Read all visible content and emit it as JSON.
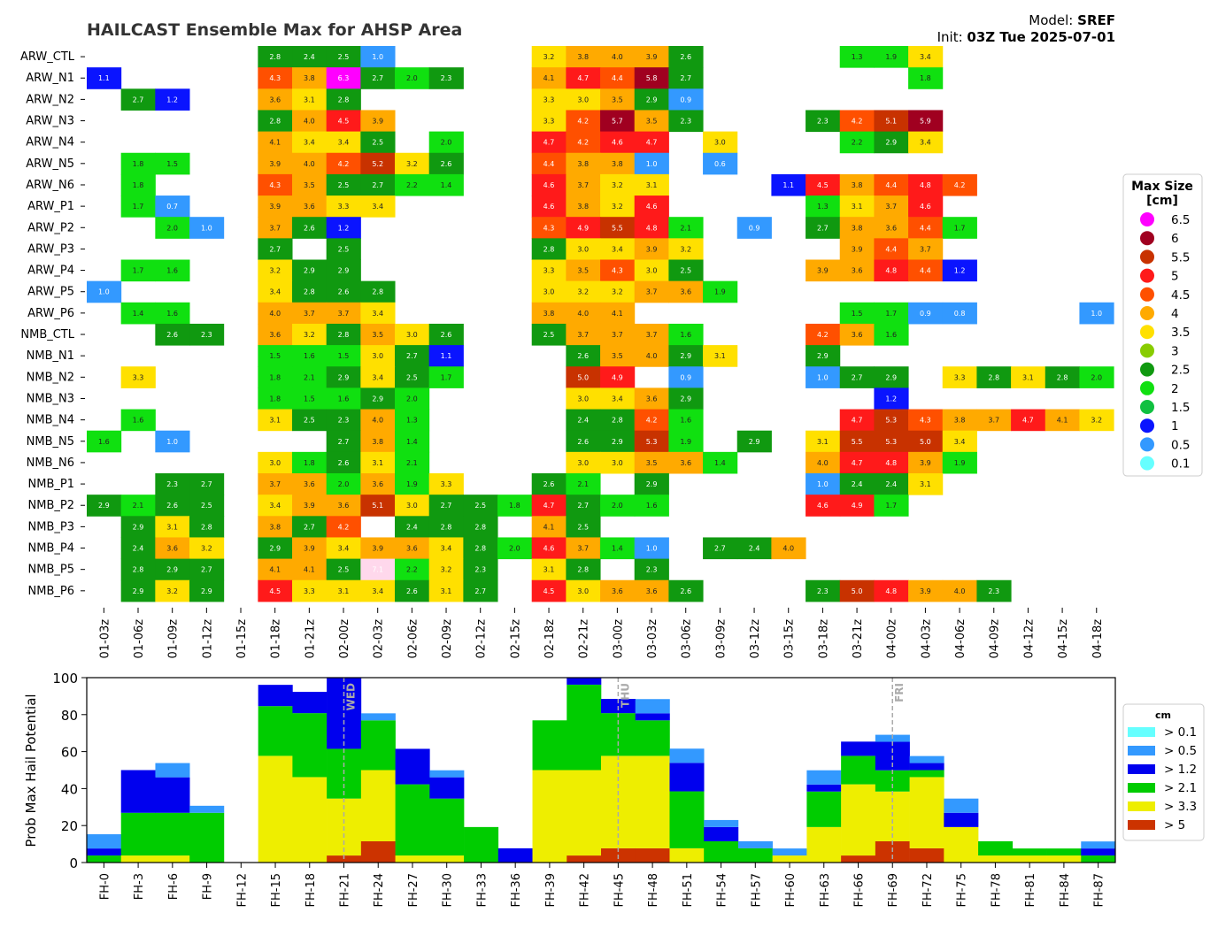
{
  "header": {
    "title": "HAILCAST Ensemble Max for AHSP Area",
    "model_label": "Model:",
    "model_value": "SREF",
    "init_label": "Init:",
    "init_value": "03Z Tue 2025-07-01"
  },
  "chart_data": [
    {
      "type": "heatmap",
      "members": [
        "ARW_CTL",
        "ARW_N1",
        "ARW_N2",
        "ARW_N3",
        "ARW_N4",
        "ARW_N5",
        "ARW_N6",
        "ARW_P1",
        "ARW_P2",
        "ARW_P3",
        "ARW_P4",
        "ARW_P5",
        "ARW_P6",
        "NMB_CTL",
        "NMB_N1",
        "NMB_N2",
        "NMB_N3",
        "NMB_N4",
        "NMB_N5",
        "NMB_N6",
        "NMB_P1",
        "NMB_P2",
        "NMB_P3",
        "NMB_P4",
        "NMB_P5",
        "NMB_P6"
      ],
      "times": [
        "01-03z",
        "01-06z",
        "01-09z",
        "01-12z",
        "01-15z",
        "01-18z",
        "01-21z",
        "02-00z",
        "02-03z",
        "02-06z",
        "02-09z",
        "02-12z",
        "02-15z",
        "02-18z",
        "02-21z",
        "03-00z",
        "03-03z",
        "03-06z",
        "03-09z",
        "03-12z",
        "03-15z",
        "03-18z",
        "03-21z",
        "04-00z",
        "04-03z",
        "04-06z",
        "04-09z",
        "04-12z",
        "04-15z",
        "04-18z"
      ],
      "values": [
        [
          null,
          null,
          null,
          null,
          null,
          2.8,
          2.4,
          2.5,
          1.0,
          null,
          null,
          null,
          null,
          3.2,
          3.8,
          4.0,
          3.9,
          2.6,
          null,
          null,
          null,
          null,
          1.3,
          1.9,
          3.4,
          null,
          null,
          null,
          null,
          null
        ],
        [
          1.1,
          null,
          null,
          null,
          null,
          4.3,
          3.8,
          6.3,
          2.7,
          2.0,
          2.3,
          null,
          null,
          4.1,
          4.7,
          4.4,
          5.8,
          2.7,
          null,
          null,
          null,
          null,
          null,
          null,
          1.8,
          null,
          null,
          null,
          null,
          null
        ],
        [
          null,
          2.7,
          1.2,
          null,
          null,
          3.6,
          3.1,
          2.8,
          null,
          null,
          null,
          null,
          null,
          3.3,
          3.0,
          3.5,
          2.9,
          0.9,
          null,
          null,
          null,
          null,
          null,
          null,
          null,
          null,
          null,
          null,
          null,
          null
        ],
        [
          null,
          null,
          null,
          null,
          null,
          2.8,
          4.0,
          4.5,
          3.9,
          null,
          null,
          null,
          null,
          3.3,
          4.2,
          5.7,
          3.5,
          2.3,
          null,
          null,
          null,
          2.3,
          4.2,
          5.1,
          5.9,
          null,
          null,
          null,
          null,
          null
        ],
        [
          null,
          null,
          null,
          null,
          null,
          4.1,
          3.4,
          3.4,
          2.5,
          null,
          2.0,
          null,
          null,
          4.7,
          4.2,
          4.6,
          4.7,
          null,
          3.0,
          null,
          null,
          null,
          2.2,
          2.9,
          3.4,
          null,
          null,
          null,
          null,
          null
        ],
        [
          null,
          1.8,
          1.5,
          null,
          null,
          3.9,
          4.0,
          4.2,
          5.2,
          3.2,
          2.6,
          null,
          null,
          4.4,
          3.8,
          3.8,
          1.0,
          null,
          0.6,
          null,
          null,
          null,
          null,
          null,
          null,
          null,
          null,
          null,
          null,
          null
        ],
        [
          null,
          1.8,
          null,
          null,
          null,
          4.3,
          3.5,
          2.5,
          2.7,
          2.2,
          1.4,
          null,
          null,
          4.6,
          3.7,
          3.2,
          3.1,
          null,
          null,
          null,
          1.1,
          4.5,
          3.8,
          4.4,
          4.8,
          4.2,
          null,
          null,
          null,
          null
        ],
        [
          null,
          1.7,
          0.7,
          null,
          null,
          3.9,
          3.6,
          3.3,
          3.4,
          null,
          null,
          null,
          null,
          4.6,
          3.8,
          3.2,
          4.6,
          null,
          null,
          null,
          null,
          1.3,
          3.1,
          3.7,
          4.6,
          null,
          null,
          null,
          null,
          null
        ],
        [
          null,
          null,
          2.0,
          1.0,
          null,
          3.7,
          2.6,
          1.2,
          null,
          null,
          null,
          null,
          null,
          4.3,
          4.9,
          5.5,
          4.8,
          2.1,
          null,
          0.9,
          null,
          2.7,
          3.8,
          3.6,
          4.4,
          1.7,
          null,
          null,
          null,
          null
        ],
        [
          null,
          null,
          null,
          null,
          null,
          2.7,
          null,
          2.5,
          null,
          null,
          null,
          null,
          null,
          2.8,
          3.0,
          3.4,
          3.9,
          3.2,
          null,
          null,
          null,
          null,
          3.9,
          4.4,
          3.7,
          null,
          null,
          null,
          null,
          null
        ],
        [
          null,
          1.7,
          1.6,
          null,
          null,
          3.2,
          2.9,
          2.9,
          null,
          null,
          null,
          null,
          null,
          3.3,
          3.5,
          4.3,
          3.0,
          2.5,
          null,
          null,
          null,
          3.9,
          3.6,
          4.8,
          4.4,
          1.2,
          null,
          null,
          null,
          null
        ],
        [
          1.0,
          null,
          null,
          null,
          null,
          3.4,
          2.8,
          2.6,
          2.8,
          null,
          null,
          null,
          null,
          3.0,
          3.2,
          3.2,
          3.7,
          3.6,
          1.9,
          null,
          null,
          null,
          null,
          null,
          null,
          null,
          null,
          null,
          null,
          null
        ],
        [
          null,
          1.4,
          1.6,
          null,
          null,
          4.0,
          3.7,
          3.7,
          3.4,
          null,
          null,
          null,
          null,
          3.8,
          4.0,
          4.1,
          null,
          null,
          null,
          null,
          null,
          null,
          1.5,
          1.7,
          0.9,
          0.8,
          null,
          null,
          null,
          1.0
        ],
        [
          null,
          null,
          2.6,
          2.3,
          null,
          3.6,
          3.2,
          2.8,
          3.5,
          3.0,
          2.6,
          null,
          null,
          2.5,
          3.7,
          3.7,
          3.7,
          1.6,
          null,
          null,
          null,
          4.2,
          3.6,
          1.6,
          null,
          null,
          null,
          null,
          null,
          null
        ],
        [
          null,
          null,
          null,
          null,
          null,
          1.5,
          1.6,
          1.5,
          3.0,
          2.7,
          1.1,
          null,
          null,
          null,
          2.6,
          3.5,
          4.0,
          2.9,
          3.1,
          null,
          null,
          2.9,
          null,
          null,
          null,
          null,
          null,
          null,
          null,
          null
        ],
        [
          null,
          3.3,
          null,
          null,
          null,
          1.8,
          2.1,
          2.9,
          3.4,
          2.5,
          1.7,
          null,
          null,
          null,
          5.0,
          4.9,
          null,
          0.9,
          null,
          null,
          null,
          1.0,
          2.7,
          2.9,
          null,
          3.3,
          2.8,
          3.1,
          2.8,
          2.0
        ],
        [
          null,
          null,
          null,
          null,
          null,
          1.8,
          1.5,
          1.6,
          2.9,
          2.0,
          null,
          null,
          null,
          null,
          3.0,
          3.4,
          3.6,
          2.9,
          null,
          null,
          null,
          null,
          null,
          1.2,
          null,
          null,
          null,
          null,
          null,
          null
        ],
        [
          null,
          1.6,
          null,
          null,
          null,
          3.1,
          2.5,
          2.3,
          4.0,
          1.3,
          null,
          null,
          null,
          null,
          2.4,
          2.8,
          4.2,
          1.6,
          null,
          null,
          null,
          null,
          4.7,
          5.3,
          4.3,
          3.8,
          3.7,
          4.7,
          4.1,
          3.2
        ],
        [
          1.6,
          null,
          1.0,
          null,
          null,
          null,
          null,
          2.7,
          3.8,
          1.4,
          null,
          null,
          null,
          null,
          2.6,
          2.9,
          5.3,
          1.9,
          null,
          2.9,
          null,
          3.1,
          5.5,
          5.3,
          5.0,
          3.4,
          null,
          null,
          null,
          null
        ],
        [
          null,
          null,
          null,
          null,
          null,
          3.0,
          1.8,
          2.6,
          3.1,
          2.1,
          null,
          null,
          null,
          null,
          3.0,
          3.0,
          3.5,
          3.6,
          1.4,
          null,
          null,
          4.0,
          4.7,
          4.8,
          3.9,
          1.9,
          null,
          null,
          null,
          null
        ],
        [
          null,
          null,
          2.3,
          2.7,
          null,
          3.7,
          3.6,
          2.0,
          3.6,
          1.9,
          3.3,
          null,
          null,
          2.6,
          2.1,
          null,
          2.9,
          null,
          null,
          null,
          null,
          1.0,
          2.4,
          2.4,
          3.1,
          null,
          null,
          null,
          null,
          null
        ],
        [
          2.9,
          2.1,
          2.6,
          2.5,
          null,
          3.4,
          3.9,
          3.6,
          5.1,
          3.0,
          2.7,
          2.5,
          1.8,
          4.7,
          2.7,
          2.0,
          1.6,
          null,
          null,
          null,
          null,
          4.6,
          4.9,
          1.7,
          null,
          null,
          null,
          null,
          null,
          null
        ],
        [
          null,
          2.9,
          3.1,
          2.8,
          null,
          3.8,
          2.7,
          4.2,
          null,
          2.4,
          2.8,
          2.8,
          null,
          4.1,
          2.5,
          null,
          null,
          null,
          null,
          null,
          null,
          null,
          null,
          null,
          null,
          null,
          null,
          null,
          null,
          null
        ],
        [
          null,
          2.4,
          3.6,
          3.2,
          null,
          2.9,
          3.9,
          3.4,
          3.9,
          3.6,
          3.4,
          2.8,
          2.0,
          4.6,
          3.7,
          1.4,
          1.0,
          null,
          2.7,
          2.4,
          4.0,
          null,
          null,
          null,
          null,
          null,
          null,
          null,
          null,
          null
        ],
        [
          null,
          2.8,
          2.9,
          2.7,
          null,
          4.1,
          4.1,
          2.5,
          7.1,
          2.2,
          3.2,
          2.3,
          null,
          3.1,
          2.8,
          null,
          2.3,
          null,
          null,
          null,
          null,
          null,
          null,
          null,
          null,
          null,
          null,
          null,
          null,
          null
        ],
        [
          null,
          2.9,
          3.2,
          2.9,
          null,
          4.5,
          3.3,
          3.1,
          3.4,
          2.6,
          3.1,
          2.7,
          null,
          4.5,
          3.0,
          3.6,
          3.6,
          2.6,
          null,
          null,
          null,
          2.3,
          5.0,
          4.8,
          3.9,
          4.0,
          2.3,
          null,
          null,
          null
        ]
      ],
      "legend": {
        "title": "Max Size\n[cm]",
        "placement": "right",
        "entries": [
          {
            "label": "6.5",
            "color": "#ff00ff"
          },
          {
            "label": "6",
            "color": "#a00020"
          },
          {
            "label": "5.5",
            "color": "#c83200"
          },
          {
            "label": "5",
            "color": "#ff1a1a"
          },
          {
            "label": "4.5",
            "color": "#ff5000"
          },
          {
            "label": "4",
            "color": "#ffaa00"
          },
          {
            "label": "3.5",
            "color": "#ffe000"
          },
          {
            "label": "3",
            "color": "#88cc00"
          },
          {
            "label": "2.5",
            "color": "#109910"
          },
          {
            "label": "2",
            "color": "#10e010"
          },
          {
            "label": "1.5",
            "color": "#10c040"
          },
          {
            "label": "1",
            "color": "#0a14ff"
          },
          {
            "label": "0.5",
            "color": "#3399ff"
          },
          {
            "label": "0.1",
            "color": "#66ffff"
          }
        ]
      }
    },
    {
      "type": "bar",
      "stacked": true,
      "ylabel": "Prob Max Hail Potential",
      "ylim": [
        0,
        100
      ],
      "yticks": [
        0,
        20,
        40,
        60,
        80,
        100
      ],
      "categories": [
        "FH-0",
        "FH-3",
        "FH-6",
        "FH-9",
        "FH-12",
        "FH-15",
        "FH-18",
        "FH-21",
        "FH-24",
        "FH-27",
        "FH-30",
        "FH-33",
        "FH-36",
        "FH-39",
        "FH-42",
        "FH-45",
        "FH-48",
        "FH-51",
        "FH-54",
        "FH-57",
        "FH-60",
        "FH-63",
        "FH-66",
        "FH-69",
        "FH-72",
        "FH-75",
        "FH-78",
        "FH-81",
        "FH-84",
        "FH-87"
      ],
      "series": [
        {
          "name": "> 5",
          "color": "#cc3300",
          "values": [
            0,
            0,
            0,
            0,
            0,
            0,
            0,
            3.8,
            11.5,
            0,
            0,
            0,
            0,
            0,
            3.8,
            7.7,
            7.7,
            0,
            0,
            0,
            0,
            0,
            3.8,
            11.5,
            7.7,
            0,
            0,
            0,
            0,
            0
          ]
        },
        {
          "name": "> 3.3",
          "color": "#eeee00",
          "values": [
            0,
            3.8,
            3.8,
            0,
            0,
            57.7,
            46.2,
            30.8,
            38.5,
            3.8,
            3.8,
            0,
            0,
            50.0,
            46.2,
            50.0,
            50.0,
            7.7,
            0,
            0,
            3.8,
            19.2,
            38.5,
            26.9,
            38.5,
            19.2,
            3.8,
            3.8,
            3.8,
            0
          ]
        },
        {
          "name": "> 2.1",
          "color": "#00cc00",
          "values": [
            3.8,
            23.1,
            23.1,
            26.9,
            0,
            26.9,
            34.6,
            26.9,
            26.9,
            38.5,
            30.8,
            19.2,
            0,
            26.9,
            46.2,
            23.1,
            19.2,
            30.8,
            11.5,
            7.7,
            0,
            19.2,
            15.4,
            11.5,
            3.8,
            0,
            7.7,
            3.8,
            3.8,
            3.8
          ]
        },
        {
          "name": "> 1.2",
          "color": "#0000ee",
          "values": [
            3.8,
            23.1,
            19.2,
            0,
            0,
            11.5,
            11.5,
            38.5,
            0,
            19.2,
            11.5,
            0,
            7.7,
            0,
            3.8,
            7.7,
            3.8,
            15.4,
            7.7,
            0,
            0,
            3.8,
            7.7,
            15.4,
            3.8,
            7.7,
            0,
            0,
            0,
            3.8
          ]
        },
        {
          "name": "> 0.5",
          "color": "#3399ff",
          "values": [
            7.7,
            0,
            7.7,
            3.8,
            0,
            0,
            0,
            0,
            3.8,
            0,
            3.8,
            0,
            0,
            0,
            0,
            0,
            7.7,
            7.7,
            3.8,
            3.8,
            3.8,
            7.7,
            0,
            3.8,
            3.8,
            7.7,
            0,
            0,
            0,
            3.8
          ]
        },
        {
          "name": "> 0.1",
          "color": "#66ffff",
          "values": [
            0,
            0,
            0,
            0,
            0,
            0,
            0,
            0,
            0,
            0,
            0,
            0,
            0,
            0,
            0,
            0,
            0,
            0,
            0,
            0,
            0,
            0,
            0,
            0,
            0,
            0,
            0,
            0,
            0,
            0
          ]
        }
      ],
      "legend_title": "cm",
      "legend_placement": "right",
      "day_markers": [
        {
          "label": "WED",
          "fh": 21
        },
        {
          "label": "THU",
          "fh": 45
        },
        {
          "label": "FRI",
          "fh": 69
        }
      ]
    }
  ]
}
